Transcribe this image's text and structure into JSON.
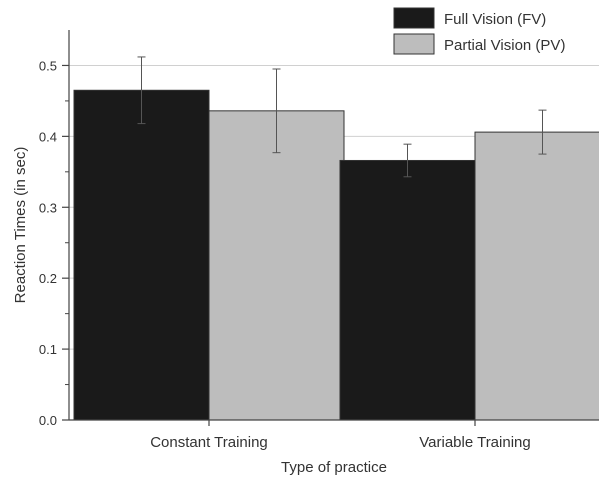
{
  "chart_data": {
    "type": "bar",
    "title": "",
    "xlabel": "Type of practice",
    "ylabel": "Reaction Times (in sec)",
    "ylim": [
      0.0,
      0.55
    ],
    "yticks": [
      "0.0",
      "0.1",
      "0.2",
      "0.3",
      "0.4",
      "0.5"
    ],
    "categories": [
      "Constant Training",
      "Variable Training"
    ],
    "series": [
      {
        "name": "Full Vision (FV)",
        "color": "#1a1a1a",
        "values": [
          0.465,
          0.366
        ],
        "error": [
          0.047,
          0.023
        ]
      },
      {
        "name": "Partial Vision (PV)",
        "color": "#bdbdbd",
        "values": [
          0.436,
          0.406
        ],
        "error": [
          0.059,
          0.031
        ]
      }
    ],
    "grid": "horizontal",
    "legend_position": "top-right"
  }
}
